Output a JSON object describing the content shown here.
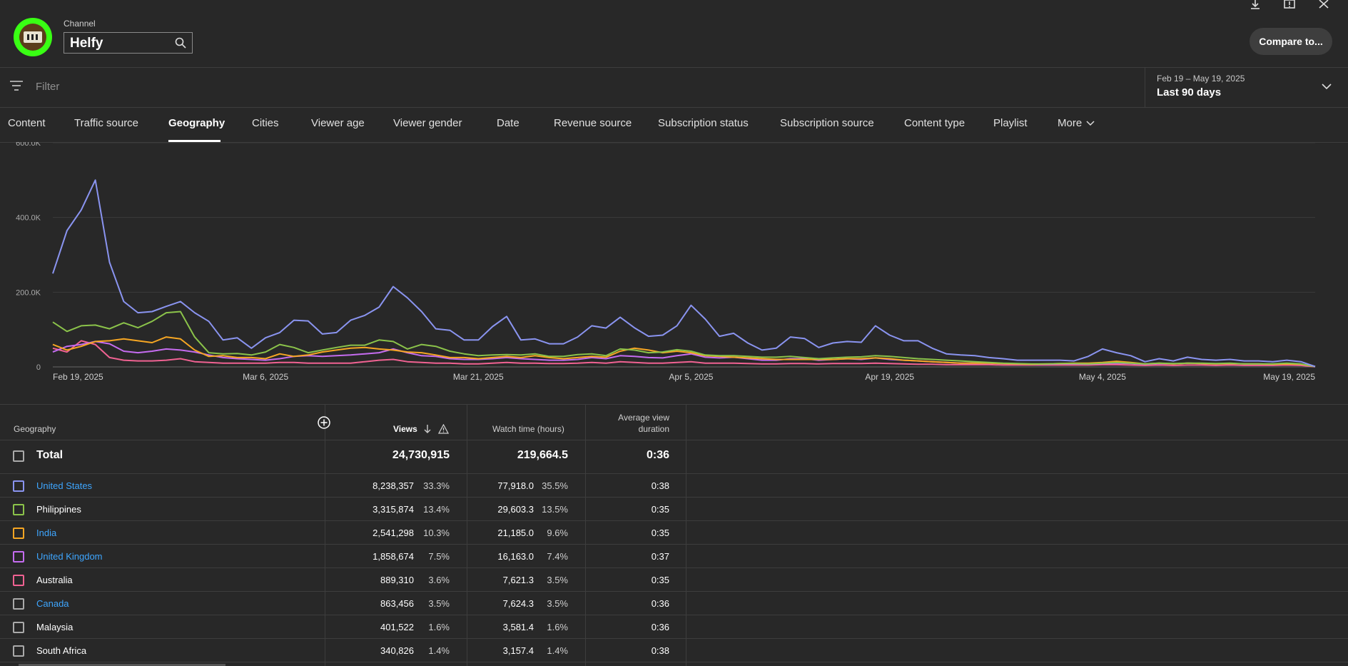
{
  "header": {
    "channel_label": "Channel",
    "channel_name": "Helfy",
    "compare_label": "Compare to...",
    "icons": [
      "download-icon",
      "feedback-icon",
      "close-icon",
      "search-icon"
    ]
  },
  "filter": {
    "placeholder": "Filter",
    "date_range": "Feb 19 – May 19, 2025",
    "date_preset": "Last 90 days"
  },
  "tabs": [
    {
      "label": "Content"
    },
    {
      "label": "Traffic source"
    },
    {
      "label": "Geography",
      "active": true
    },
    {
      "label": "Cities"
    },
    {
      "label": "Viewer age"
    },
    {
      "label": "Viewer gender"
    },
    {
      "label": "Date"
    },
    {
      "label": "Revenue source"
    },
    {
      "label": "Subscription status"
    },
    {
      "label": "Subscription source"
    },
    {
      "label": "Content type"
    },
    {
      "label": "Playlist"
    },
    {
      "label": "More"
    }
  ],
  "chart_data": {
    "type": "line",
    "ylim": [
      0,
      600000
    ],
    "y_tick_labels": [
      "0",
      "200.0K",
      "400.0K",
      "600.0K"
    ],
    "y_ticks": [
      0,
      200000,
      400000,
      600000
    ],
    "x_tick_labels": [
      "Feb 19, 2025",
      "Mar 6, 2025",
      "Mar 21, 2025",
      "Apr 5, 2025",
      "Apr 19, 2025",
      "May 4, 2025",
      "May 19, 2025"
    ],
    "x_tick_index": [
      0,
      15,
      30,
      45,
      59,
      74,
      89
    ],
    "series": [
      {
        "name": "United States",
        "color": "#8a94f0",
        "values": [
          250000,
          365000,
          420000,
          500000,
          280000,
          175000,
          145000,
          148000,
          162000,
          175000,
          145000,
          122000,
          72000,
          78000,
          50000,
          78000,
          92000,
          125000,
          123000,
          88000,
          92000,
          125000,
          138000,
          160000,
          215000,
          185000,
          148000,
          102000,
          98000,
          72000,
          72000,
          108000,
          135000,
          72000,
          75000,
          62000,
          62000,
          80000,
          110000,
          104000,
          133000,
          105000,
          82000,
          85000,
          110000,
          165000,
          128000,
          82000,
          90000,
          64000,
          45000,
          50000,
          80000,
          76000,
          52000,
          64000,
          68000,
          66000,
          110000,
          85000,
          70000,
          70000,
          50000,
          35000,
          32000,
          30000,
          25000,
          22000,
          18000,
          18000,
          18000,
          18000,
          16000,
          28000,
          48000,
          38000,
          30000,
          14000,
          22000,
          16000,
          26000,
          20000,
          18000,
          20000,
          16000,
          16000,
          14000,
          18000,
          14000,
          1000
        ]
      },
      {
        "name": "Philippines",
        "color": "#8bc34a",
        "values": [
          120000,
          95000,
          110000,
          112000,
          102000,
          118000,
          105000,
          122000,
          145000,
          148000,
          80000,
          38000,
          35000,
          36000,
          32000,
          40000,
          60000,
          52000,
          38000,
          45000,
          52000,
          58000,
          58000,
          72000,
          68000,
          48000,
          60000,
          55000,
          42000,
          35000,
          30000,
          32000,
          33000,
          32000,
          35000,
          28000,
          28000,
          33000,
          35000,
          30000,
          48000,
          45000,
          38000,
          40000,
          46000,
          42000,
          32000,
          30000,
          30000,
          28000,
          26000,
          26000,
          28000,
          25000,
          22000,
          24000,
          26000,
          27000,
          30000,
          28000,
          25000,
          22000,
          20000,
          18000,
          16000,
          14000,
          12000,
          10000,
          9000,
          8000,
          8000,
          9000,
          9000,
          8000,
          10000,
          12000,
          10000,
          8000,
          10000,
          9000,
          10000,
          10000,
          9000,
          10000,
          8000,
          8000,
          8000,
          10000,
          8000,
          1000
        ]
      },
      {
        "name": "India",
        "color": "#f6a623",
        "values": [
          60000,
          45000,
          55000,
          68000,
          70000,
          75000,
          70000,
          65000,
          80000,
          75000,
          45000,
          28000,
          30000,
          25000,
          25000,
          22000,
          35000,
          28000,
          32000,
          40000,
          45000,
          50000,
          52000,
          48000,
          45000,
          40000,
          38000,
          32000,
          25000,
          25000,
          22000,
          25000,
          28000,
          25000,
          30000,
          25000,
          22000,
          25000,
          28000,
          26000,
          42000,
          50000,
          45000,
          38000,
          42000,
          38000,
          30000,
          28000,
          26000,
          24000,
          22000,
          20000,
          20000,
          20000,
          20000,
          20000,
          22000,
          22000,
          24000,
          22000,
          18000,
          16000,
          14000,
          12000,
          10000,
          10000,
          10000,
          9000,
          8000,
          7000,
          8000,
          9000,
          10000,
          10000,
          12000,
          15000,
          12000,
          8000,
          10000,
          8000,
          10000,
          9000,
          8000,
          9000,
          8000,
          8000,
          7000,
          8000,
          7000,
          1000
        ]
      },
      {
        "name": "United Kingdom",
        "color": "#c56cf0",
        "values": [
          40000,
          55000,
          60000,
          68000,
          62000,
          42000,
          38000,
          42000,
          48000,
          45000,
          40000,
          32000,
          25000,
          22000,
          20000,
          18000,
          22000,
          28000,
          30000,
          28000,
          30000,
          32000,
          35000,
          38000,
          48000,
          38000,
          30000,
          28000,
          22000,
          20000,
          20000,
          22000,
          25000,
          22000,
          20000,
          18000,
          18000,
          20000,
          25000,
          22000,
          30000,
          28000,
          25000,
          24000,
          30000,
          35000,
          26000,
          24000,
          26000,
          22000,
          18000,
          18000,
          22000,
          22000,
          18000,
          20000,
          22000,
          20000,
          24000,
          20000,
          18000,
          16000,
          14000,
          12000,
          10000,
          10000,
          10000,
          9000,
          8000,
          7000,
          7000,
          8000,
          8000,
          7000,
          9000,
          10000,
          9000,
          7000,
          9000,
          8000,
          10000,
          9000,
          8000,
          9000,
          8000,
          8000,
          7000,
          9000,
          7000,
          1000
        ]
      },
      {
        "name": "Australia",
        "color": "#f06292",
        "values": [
          50000,
          40000,
          70000,
          60000,
          25000,
          18000,
          16000,
          16000,
          18000,
          22000,
          14000,
          12000,
          10000,
          10000,
          10000,
          10000,
          12000,
          12000,
          10000,
          10000,
          10000,
          10000,
          14000,
          18000,
          20000,
          14000,
          12000,
          10000,
          10000,
          8000,
          8000,
          10000,
          12000,
          10000,
          10000,
          9000,
          9000,
          10000,
          12000,
          10000,
          14000,
          12000,
          10000,
          10000,
          12000,
          14000,
          10000,
          10000,
          10000,
          9000,
          8000,
          8000,
          9000,
          9000,
          8000,
          9000,
          9000,
          9000,
          10000,
          9000,
          8000,
          7000,
          7000,
          6000,
          6000,
          6000,
          6000,
          5000,
          5000,
          5000,
          5000,
          5000,
          5000,
          5000,
          6000,
          6000,
          5000,
          4000,
          5000,
          4000,
          5000,
          5000,
          4000,
          5000,
          4000,
          4000,
          4000,
          5000,
          4000,
          500
        ]
      }
    ]
  },
  "table": {
    "headers": {
      "geography": "Geography",
      "views": "Views",
      "watch_time": "Watch time (hours)",
      "avd_line1": "Average view",
      "avd_line2": "duration"
    },
    "total": {
      "label": "Total",
      "views": "24,730,915",
      "watch": "219,664.5",
      "avd": "0:36"
    },
    "rows": [
      {
        "name": "United States",
        "link": true,
        "color": "#8a94f0",
        "views": "8,238,357",
        "views_pct": "33.3%",
        "watch": "77,918.0",
        "watch_pct": "35.5%",
        "avd": "0:38"
      },
      {
        "name": "Philippines",
        "link": false,
        "color": "#8bc34a",
        "views": "3,315,874",
        "views_pct": "13.4%",
        "watch": "29,603.3",
        "watch_pct": "13.5%",
        "avd": "0:35"
      },
      {
        "name": "India",
        "link": true,
        "color": "#f6a623",
        "views": "2,541,298",
        "views_pct": "10.3%",
        "watch": "21,185.0",
        "watch_pct": "9.6%",
        "avd": "0:35"
      },
      {
        "name": "United Kingdom",
        "link": true,
        "color": "#c56cf0",
        "views": "1,858,674",
        "views_pct": "7.5%",
        "watch": "16,163.0",
        "watch_pct": "7.4%",
        "avd": "0:37"
      },
      {
        "name": "Australia",
        "link": false,
        "color": "#f06292",
        "views": "889,310",
        "views_pct": "3.6%",
        "watch": "7,621.3",
        "watch_pct": "3.5%",
        "avd": "0:35"
      },
      {
        "name": "Canada",
        "link": true,
        "color": "#aaaaaa",
        "views": "863,456",
        "views_pct": "3.5%",
        "watch": "7,624.3",
        "watch_pct": "3.5%",
        "avd": "0:36"
      },
      {
        "name": "Malaysia",
        "link": false,
        "color": "#aaaaaa",
        "views": "401,522",
        "views_pct": "1.6%",
        "watch": "3,581.4",
        "watch_pct": "1.6%",
        "avd": "0:36"
      },
      {
        "name": "South Africa",
        "link": false,
        "color": "#aaaaaa",
        "views": "340,826",
        "views_pct": "1.4%",
        "watch": "3,157.4",
        "watch_pct": "1.4%",
        "avd": "0:38"
      }
    ]
  }
}
